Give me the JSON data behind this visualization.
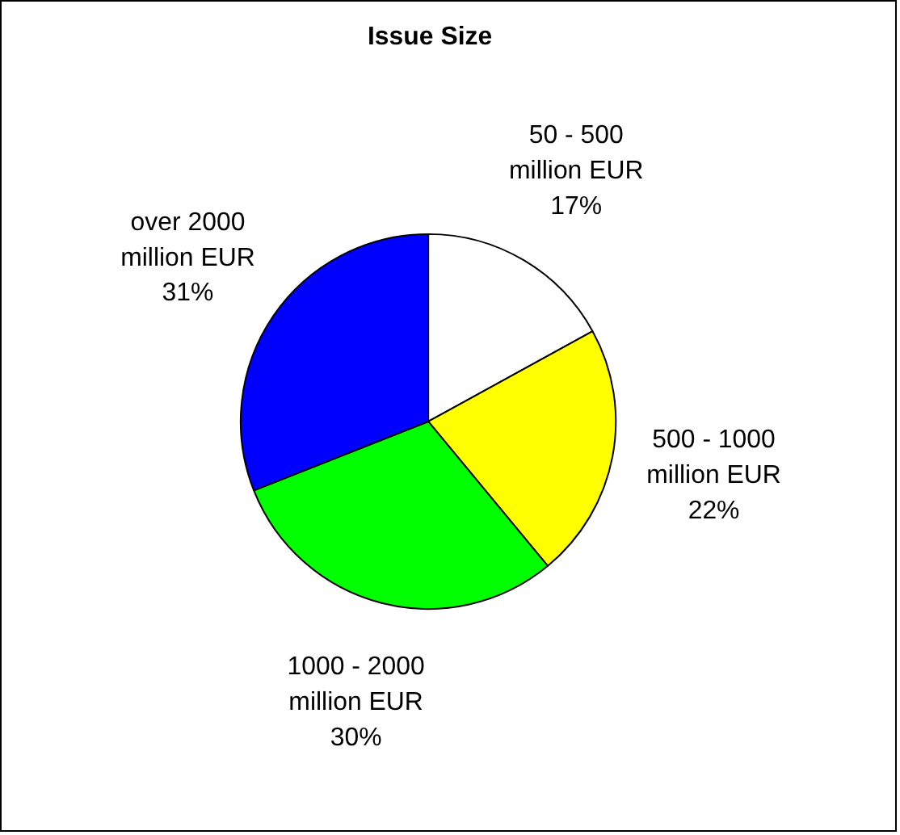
{
  "chart_data": {
    "type": "pie",
    "title": "Issue Size",
    "categories": [
      "50 - 500 million EUR",
      "500 - 1000 million EUR",
      "1000 - 2000 million EUR",
      "over 2000 million EUR"
    ],
    "values": [
      17,
      22,
      30,
      31
    ],
    "colors": [
      "#ffffff",
      "#ffff00",
      "#00ff00",
      "#0000ff"
    ],
    "value_labels": [
      "17%",
      "22%",
      "30%",
      "31%"
    ],
    "legend": false
  }
}
